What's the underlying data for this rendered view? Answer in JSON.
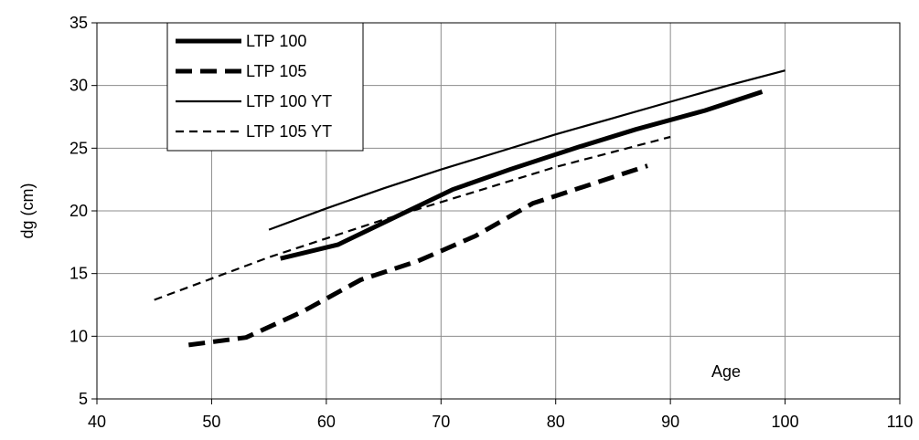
{
  "chart_data": {
    "type": "line",
    "title": "",
    "xlabel": "Age",
    "ylabel": "dg (cm)",
    "xlim": [
      40,
      110
    ],
    "ylim": [
      5,
      35
    ],
    "xticks": [
      40,
      50,
      60,
      70,
      80,
      90,
      100,
      110
    ],
    "yticks": [
      5,
      10,
      15,
      20,
      25,
      30,
      35
    ],
    "grid": true,
    "legend_position": "top-left",
    "series": [
      {
        "name": "LTP 100",
        "style": "thick-solid",
        "x": [
          56,
          61,
          66,
          71,
          76,
          82,
          87,
          93,
          98
        ],
        "y": [
          16.2,
          17.3,
          19.5,
          21.7,
          23.3,
          25.1,
          26.5,
          28.0,
          29.5
        ]
      },
      {
        "name": "LTP 105",
        "style": "thick-dashed",
        "x": [
          48,
          53,
          58,
          63,
          68,
          73,
          78,
          83,
          88
        ],
        "y": [
          9.3,
          9.9,
          12.0,
          14.5,
          16.0,
          18.0,
          20.6,
          22.1,
          23.6
        ]
      },
      {
        "name": "LTP 100 YT",
        "style": "thin-solid",
        "x": [
          55,
          60,
          65,
          70,
          75,
          80,
          85,
          90,
          95,
          100
        ],
        "y": [
          18.5,
          20.2,
          21.8,
          23.3,
          24.7,
          26.1,
          27.4,
          28.7,
          30.0,
          31.2
        ]
      },
      {
        "name": "LTP 105 YT",
        "style": "thin-dashed",
        "x": [
          45,
          50,
          55,
          60,
          65,
          70,
          75,
          80,
          85,
          90
        ],
        "y": [
          12.9,
          14.6,
          16.3,
          17.8,
          19.3,
          20.7,
          22.1,
          23.5,
          24.7,
          25.9
        ]
      }
    ]
  }
}
